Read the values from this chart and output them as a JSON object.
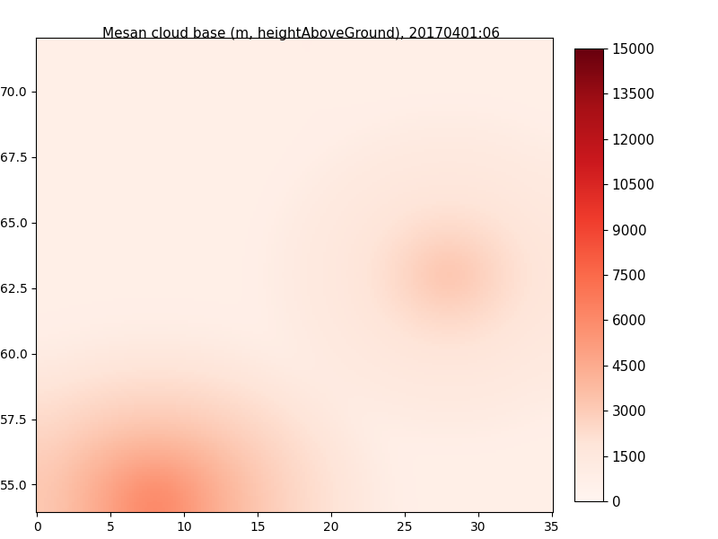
{
  "title": "Mesan cloud base (m, heightAboveGround), 20170401:06",
  "colorbar_ticks": [
    0,
    1500,
    3000,
    4500,
    6000,
    7500,
    9000,
    10500,
    12000,
    13500,
    15000
  ],
  "vmin": 0,
  "vmax": 15000,
  "cmap_colors": [
    "#fff5f0",
    "#fee0d2",
    "#fcbba1",
    "#fc9272",
    "#fb6a4a",
    "#ef3b2c",
    "#cb181d",
    "#99000d",
    "#67000d"
  ],
  "figure_bg": "#ffffff",
  "map_bg": "#ffffff",
  "title_fontsize": 11,
  "colorbar_fontsize": 11
}
